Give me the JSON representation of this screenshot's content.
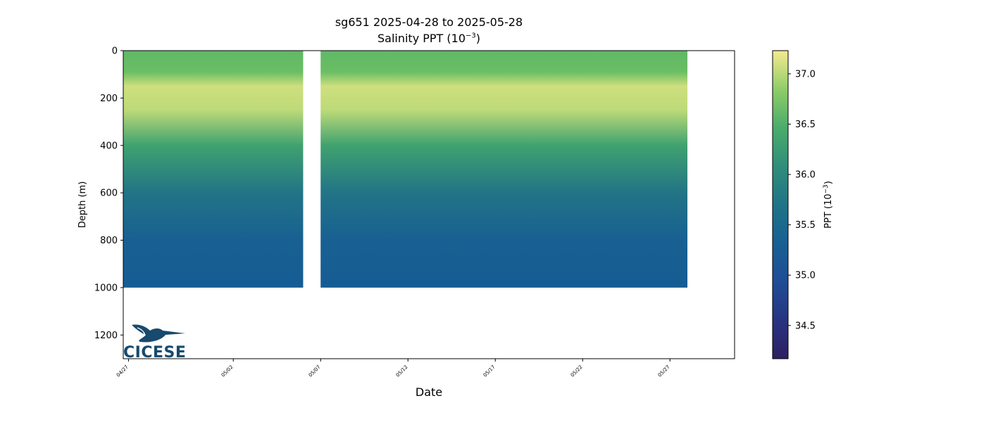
{
  "title_line1": "sg651 2025-04-28 to 2025-05-28",
  "title_line2_prefix": "Salinity PPT (10",
  "title_line2_sup": "−3",
  "title_line2_suffix": ")",
  "logo_text": "CICESE",
  "colors": {
    "background": "#ffffff",
    "gap": "#ffffff",
    "colormap": [
      "#2e1f63",
      "#1f3f99",
      "#145897",
      "#217287",
      "#2f8d7a",
      "#43a86c",
      "#6cbf64",
      "#b5d874",
      "#f3e98e"
    ],
    "logo": "#174a6e"
  },
  "chart_data": {
    "type": "heatmap",
    "title": "sg651 2025-04-28 to 2025-05-28",
    "subtitle": "Salinity PPT (10^-3)",
    "xlabel": "Date",
    "ylabel": "Depth (m)",
    "colorbar_label": "PPT (10^-3)",
    "x_range_days_since_0427": [
      -0.3,
      34.7
    ],
    "x_ticks": [
      "04/27",
      "05/02",
      "05/07",
      "05/12",
      "05/17",
      "05/22",
      "05/27"
    ],
    "y_range": [
      1300,
      0
    ],
    "y_inverted": true,
    "y_ticks": [
      0,
      200,
      400,
      600,
      800,
      1000,
      1200
    ],
    "colorbar_range": [
      34.17,
      37.23
    ],
    "colorbar_ticks": [
      34.5,
      35.0,
      35.5,
      36.0,
      36.5,
      37.0
    ],
    "data_start": "04/26",
    "data_end": "05/28",
    "data_gaps": [
      [
        "05/06",
        "05/07"
      ]
    ],
    "max_depth_m": 1000,
    "salinity_profile": [
      {
        "depth": 0,
        "value": 36.35
      },
      {
        "depth": 90,
        "value": 36.45
      },
      {
        "depth": 150,
        "value": 37.0
      },
      {
        "depth": 250,
        "value": 36.9
      },
      {
        "depth": 400,
        "value": 36.0
      },
      {
        "depth": 600,
        "value": 35.35
      },
      {
        "depth": 800,
        "value": 35.05
      },
      {
        "depth": 1000,
        "value": 35.0
      }
    ],
    "grid": false
  }
}
